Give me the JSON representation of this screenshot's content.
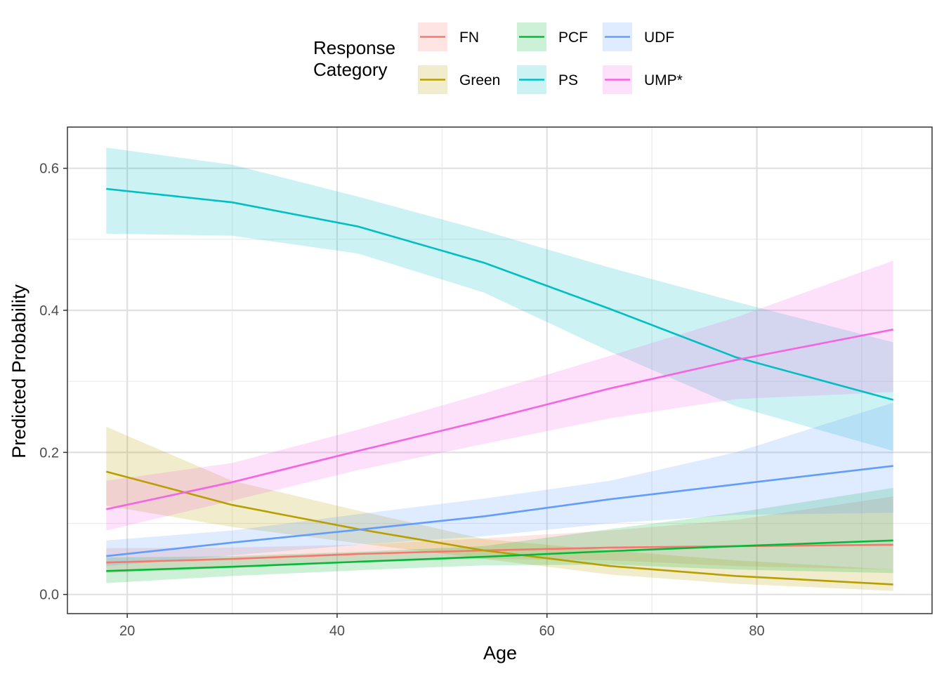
{
  "chart_data": {
    "type": "line",
    "xlabel": "Age",
    "ylabel": "Predicted Probability",
    "xlim": [
      14.3,
      96.7
    ],
    "ylim": [
      -0.027,
      0.658
    ],
    "xticks": [
      20,
      40,
      60,
      80
    ],
    "xtick_labels": [
      "20",
      "40",
      "60",
      "80"
    ],
    "yticks": [
      0.0,
      0.2,
      0.4,
      0.6
    ],
    "ytick_labels": [
      "0.0",
      "0.2",
      "0.4",
      "0.6"
    ],
    "grid": true,
    "legend": {
      "title_lines": [
        "Response",
        "Category"
      ],
      "position": "top"
    },
    "x": [
      18,
      30,
      42,
      54,
      66,
      78,
      93
    ],
    "series": [
      {
        "name": "FN",
        "color": "#F8766D",
        "values": [
          0.045,
          0.05,
          0.057,
          0.062,
          0.066,
          0.068,
          0.07
        ],
        "lower": [
          0.03,
          0.037,
          0.045,
          0.05,
          0.048,
          0.04,
          0.035
        ],
        "upper": [
          0.065,
          0.066,
          0.07,
          0.079,
          0.09,
          0.105,
          0.138
        ]
      },
      {
        "name": "Green",
        "color": "#B79F00",
        "values": [
          0.173,
          0.126,
          0.092,
          0.062,
          0.04,
          0.026,
          0.014
        ],
        "lower": [
          0.125,
          0.095,
          0.072,
          0.05,
          0.028,
          0.015,
          0.005
        ],
        "upper": [
          0.236,
          0.16,
          0.118,
          0.078,
          0.062,
          0.048,
          0.035
        ]
      },
      {
        "name": "PCF",
        "color": "#00BA38",
        "values": [
          0.033,
          0.039,
          0.046,
          0.053,
          0.061,
          0.068,
          0.076
        ],
        "lower": [
          0.016,
          0.026,
          0.034,
          0.041,
          0.042,
          0.035,
          0.03
        ],
        "upper": [
          0.052,
          0.054,
          0.06,
          0.068,
          0.092,
          0.115,
          0.15
        ]
      },
      {
        "name": "PS",
        "color": "#00BFC4",
        "values": [
          0.571,
          0.552,
          0.518,
          0.467,
          0.402,
          0.334,
          0.274
        ],
        "lower": [
          0.508,
          0.505,
          0.48,
          0.425,
          0.342,
          0.265,
          0.202
        ],
        "upper": [
          0.629,
          0.605,
          0.56,
          0.512,
          0.46,
          0.412,
          0.355
        ]
      },
      {
        "name": "UDF",
        "color": "#619CFF",
        "values": [
          0.054,
          0.073,
          0.091,
          0.11,
          0.134,
          0.155,
          0.181
        ],
        "lower": [
          0.04,
          0.055,
          0.07,
          0.082,
          0.1,
          0.112,
          0.115
        ],
        "upper": [
          0.076,
          0.09,
          0.113,
          0.135,
          0.16,
          0.2,
          0.27
        ]
      },
      {
        "name": "UMP*",
        "color": "#F564E3",
        "values": [
          0.12,
          0.158,
          0.202,
          0.245,
          0.29,
          0.33,
          0.373
        ],
        "lower": [
          0.09,
          0.132,
          0.175,
          0.212,
          0.248,
          0.275,
          0.285
        ],
        "upper": [
          0.16,
          0.185,
          0.232,
          0.283,
          0.336,
          0.39,
          0.47
        ]
      }
    ]
  }
}
